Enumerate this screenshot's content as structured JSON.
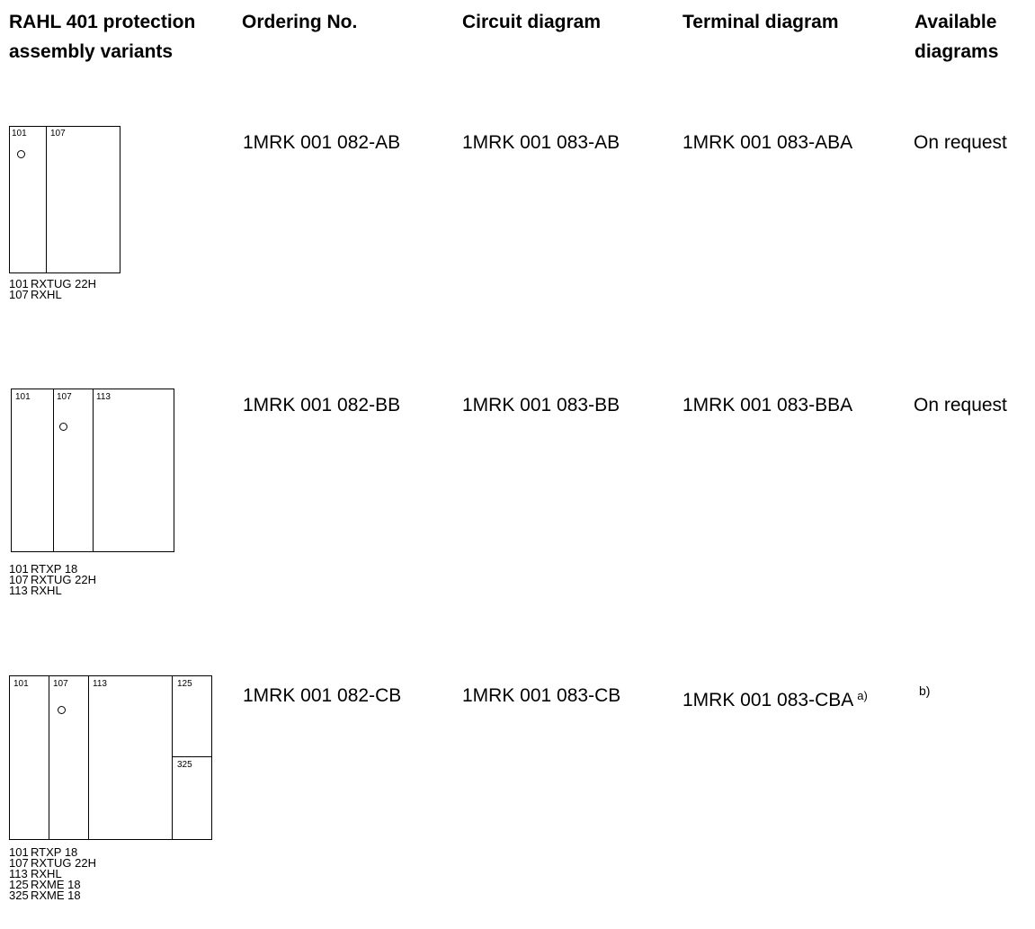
{
  "headers": {
    "variants": [
      "RAHL 401 protection",
      "assembly variants"
    ],
    "ordering": "Ordering No.",
    "circuit": "Circuit diagram",
    "terminal": "Terminal diagram",
    "available": [
      "Available",
      "diagrams"
    ]
  },
  "rows": [
    {
      "slots": [
        "101",
        "107"
      ],
      "legend": [
        {
          "num": "101",
          "name": "RXTUG 22H"
        },
        {
          "num": "107",
          "name": "RXHL"
        }
      ],
      "ordering_no": "1MRK 001 082-AB",
      "circuit_diagram": "1MRK 001 083-AB",
      "terminal_diagram": "1MRK 001 083-ABA",
      "terminal_note": "",
      "available": "On request"
    },
    {
      "slots": [
        "101",
        "107",
        "113"
      ],
      "legend": [
        {
          "num": "101",
          "name": "RTXP 18"
        },
        {
          "num": "107",
          "name": "RXTUG 22H"
        },
        {
          "num": "113",
          "name": "RXHL"
        }
      ],
      "ordering_no": "1MRK 001 082-BB",
      "circuit_diagram": "1MRK 001 083-BB",
      "terminal_diagram": "1MRK 001 083-BBA",
      "terminal_note": "",
      "available": "On request"
    },
    {
      "slots": [
        "101",
        "107",
        "113",
        "125",
        "325"
      ],
      "legend": [
        {
          "num": "101",
          "name": "RTXP 18"
        },
        {
          "num": "107",
          "name": "RXTUG 22H"
        },
        {
          "num": "113",
          "name": "RXHL"
        },
        {
          "num": "125",
          "name": "RXME 18"
        },
        {
          "num": "325",
          "name": "RXME 18"
        }
      ],
      "ordering_no": "1MRK 001 082-CB",
      "circuit_diagram": "1MRK 001 083-CB",
      "terminal_diagram": "1MRK 001 083-CBA",
      "terminal_note": "a)",
      "available": "b)"
    }
  ]
}
